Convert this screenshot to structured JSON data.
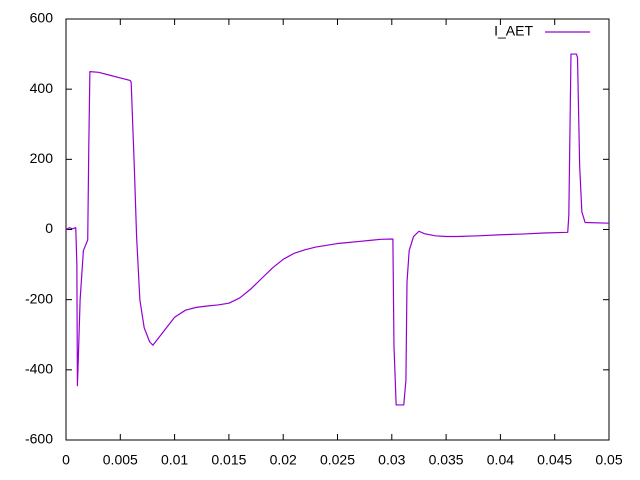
{
  "chart_data": {
    "type": "line",
    "legend": "top right",
    "xlim": [
      0,
      0.05
    ],
    "ylim": [
      -600,
      600
    ],
    "xticks": [
      0,
      0.005,
      0.01,
      0.015,
      0.02,
      0.025,
      0.03,
      0.035,
      0.04,
      0.045,
      0.05
    ],
    "yticks": [
      -600,
      -400,
      -200,
      0,
      200,
      400,
      600
    ],
    "x": [
      0,
      0.0003,
      0.0006,
      0.0009,
      0.001,
      0.00105,
      0.0011,
      0.0013,
      0.0016,
      0.002,
      0.0021,
      0.0022,
      0.003,
      0.004,
      0.005,
      0.0059,
      0.006,
      0.0063,
      0.0065,
      0.0068,
      0.0072,
      0.0077,
      0.008,
      0.009,
      0.01,
      0.011,
      0.012,
      0.013,
      0.014,
      0.015,
      0.016,
      0.017,
      0.018,
      0.019,
      0.02,
      0.021,
      0.022,
      0.023,
      0.024,
      0.025,
      0.026,
      0.027,
      0.028,
      0.029,
      0.0301,
      0.0302,
      0.0304,
      0.031,
      0.0311,
      0.0313,
      0.0314,
      0.0316,
      0.032,
      0.0325,
      0.033,
      0.034,
      0.035,
      0.036,
      0.038,
      0.04,
      0.042,
      0.044,
      0.0462,
      0.0463,
      0.0465,
      0.047,
      0.0471,
      0.0473,
      0.0475,
      0.0478,
      0.05
    ],
    "series": [
      {
        "name": "I_AET",
        "color": "#9400d3",
        "values": [
          0,
          5,
          2,
          5,
          -100,
          -445,
          -400,
          -200,
          -60,
          -30,
          240,
          450,
          448,
          440,
          432,
          425,
          420,
          170,
          -20,
          -200,
          -280,
          -320,
          -330,
          -290,
          -250,
          -230,
          -222,
          -218,
          -215,
          -210,
          -195,
          -170,
          -140,
          -110,
          -85,
          -68,
          -58,
          -50,
          -45,
          -40,
          -37,
          -34,
          -31,
          -28,
          -27,
          -330,
          -500,
          -500,
          -500,
          -430,
          -150,
          -60,
          -20,
          -5,
          -12,
          -18,
          -20,
          -20,
          -18,
          -15,
          -13,
          -10,
          -8,
          40,
          500,
          500,
          490,
          180,
          50,
          20,
          18
        ]
      }
    ]
  }
}
